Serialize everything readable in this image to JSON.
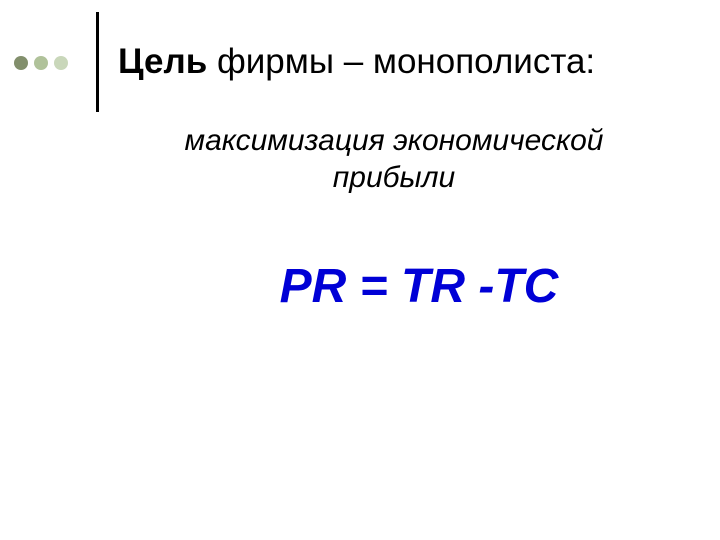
{
  "decoration": {
    "dot_colors": [
      "#828f6c",
      "#b0c29a",
      "#c9d7ba"
    ],
    "line_color": "#000000"
  },
  "title": {
    "bold_part": "Цель",
    "rest_part": " фирмы – монополиста:",
    "color": "#000000",
    "fontsize": 35
  },
  "subtitle": {
    "text": "максимизация экономической прибыли",
    "color": "#000000",
    "fontsize": 30,
    "italic": true
  },
  "formula": {
    "text": "PR = TR -TC",
    "color": "#0000d6",
    "fontsize": 48,
    "bold": true,
    "italic": true
  },
  "background_color": "#ffffff"
}
